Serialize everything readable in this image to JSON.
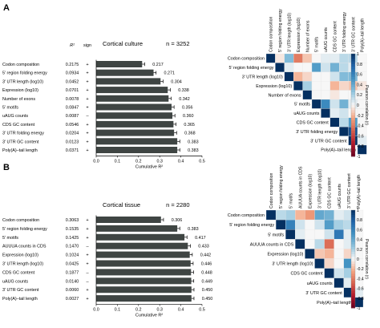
{
  "chart_data": [
    {
      "panel": "A",
      "type": "bar",
      "title": "Cortical culture",
      "n_label": "n = 3252",
      "xlabel": "Cumulative R²",
      "xlim": [
        0,
        0.5
      ],
      "xticks": [
        "0.0",
        "0.1",
        "0.2",
        "0.3",
        "0.4",
        "0.5"
      ],
      "col_headers": [
        "R²",
        "sign"
      ],
      "categories": [
        "Codon composition",
        "5' region folding energy",
        "3' UTR length (log10)",
        "Expression (log10)",
        "Number of exons",
        "5' motifs",
        "uAUG counts",
        "CDS GC content",
        "3' UTR folding energy",
        "3' UTR GC content",
        "Poly(A)–tail length"
      ],
      "r2_labels": [
        "0.2175",
        "0.0934",
        "0.0452",
        "0.0701",
        "0.0078",
        "0.0847",
        "0.0087",
        "0.0546",
        "0.0204",
        "0.0123",
        "0.0371"
      ],
      "signs": [
        "+",
        "+",
        "+",
        "+",
        "+",
        "+",
        "–",
        "+",
        "+",
        "+",
        "+"
      ],
      "values": [
        0.217,
        0.271,
        0.304,
        0.338,
        0.342,
        0.356,
        0.36,
        0.365,
        0.368,
        0.383,
        0.383
      ],
      "value_labels": [
        "0.217",
        "0.271",
        "0.304",
        "0.338",
        "0.342",
        "0.356",
        "0.360",
        "0.365",
        "0.368",
        "0.383",
        "0.383"
      ]
    },
    {
      "panel": "B",
      "type": "bar",
      "title": "Cortical tissue",
      "n_label": "n = 2280",
      "xlabel": "Cumulative R²",
      "xlim": [
        0,
        0.5
      ],
      "xticks": [
        "0.0",
        "0.1",
        "0.2",
        "0.3",
        "0.4",
        "0.5"
      ],
      "col_headers": [],
      "categories": [
        "Codon composition",
        "5' region folding energy",
        "5' motifs",
        "AUUUA counts in CDS",
        "Expression (log10)",
        "3' UTR length (log10)",
        "CDS GC content",
        "uAUG counts",
        "3' UTR GC content",
        "Poly(A)–tail length"
      ],
      "r2_labels": [
        "0.3063",
        "0.1535",
        "0.1425",
        "0.1470",
        "0.1024",
        "0.0425",
        "0.1877",
        "0.0140",
        "0.0060",
        "0.0027"
      ],
      "signs": [
        "+",
        "+",
        "+",
        "–",
        "+",
        "+",
        "–",
        "–",
        "+",
        "+"
      ],
      "values": [
        0.306,
        0.383,
        0.417,
        0.433,
        0.442,
        0.446,
        0.448,
        0.449,
        0.45,
        0.45
      ],
      "value_labels": [
        "0.306",
        "0.383",
        "0.417",
        "0.433",
        "0.442",
        "0.446",
        "0.448",
        "0.449",
        "0.450",
        "0.450"
      ]
    },
    {
      "panel": "A",
      "type": "heatmap",
      "row_labels": [
        "Codon composition",
        "5' region folding energy",
        "3' UTR length (log10)",
        "Expression (log10)",
        "Number of exons",
        "5' motifs",
        "uAUG counts",
        "CDS GC content",
        "3' UTR folding energy",
        "3' UTR GC content",
        "Poly(A)–tail length"
      ],
      "column_labels": [
        "Codon composition",
        "5' region folding energy",
        "3' UTR length (log10)",
        "Expression (log10)",
        "Number of exons",
        "5' motifs",
        "uAUG counts",
        "CDS GC content",
        "3' UTR folding energy",
        "3' UTR GC content",
        "Poly(A)–tail length"
      ],
      "colorbar_label": "Pearson correlation (r)",
      "colorbar_ticks": [
        "1",
        "0.8",
        "0.6",
        "0.4",
        "0.2",
        "0",
        "-0.2",
        "-0.4",
        "-0.6",
        "-0.8",
        "-1"
      ],
      "matrix": [
        [
          1,
          -0.05,
          0.3,
          -0.4,
          -0.15,
          0,
          0.05,
          0.05,
          0.15,
          0.15,
          0
        ],
        [
          null,
          1,
          0.05,
          0,
          0,
          0.45,
          0.1,
          0.35,
          0.15,
          0.05,
          0
        ],
        [
          null,
          null,
          1,
          -0.2,
          -0.1,
          0,
          0,
          0.1,
          0.3,
          0.3,
          0
        ],
        [
          null,
          null,
          null,
          1,
          0.2,
          0,
          0,
          -0.2,
          -0.1,
          -0.15,
          -0.05
        ],
        [
          null,
          null,
          null,
          null,
          1,
          0,
          0,
          -0.05,
          0,
          0,
          0
        ],
        [
          null,
          null,
          null,
          null,
          null,
          1,
          0.55,
          0.1,
          0.35,
          0.05,
          0
        ],
        [
          null,
          null,
          null,
          null,
          null,
          null,
          1,
          0.05,
          0.1,
          0,
          0
        ],
        [
          null,
          null,
          null,
          null,
          null,
          null,
          null,
          1,
          0.15,
          0.45,
          0
        ],
        [
          null,
          null,
          null,
          null,
          null,
          null,
          null,
          null,
          1,
          0.85,
          0
        ],
        [
          null,
          null,
          null,
          null,
          null,
          null,
          null,
          null,
          null,
          1,
          0.05
        ],
        [
          null,
          null,
          null,
          null,
          null,
          null,
          null,
          null,
          null,
          null,
          1
        ]
      ]
    },
    {
      "panel": "B",
      "type": "heatmap",
      "row_labels": [
        "Codon composition",
        "5' region folding energy",
        "5' motifs",
        "AUUUA counts in CDS",
        "Expression (log10)",
        "3' UTR length (log10)",
        "CDS GC content",
        "uAUG counts",
        "3' UTR GC content",
        "Poly(A)–tail length"
      ],
      "column_labels": [
        "Codon composition",
        "5' region folding energy",
        "5' motifs",
        "AUUUA counts in CDS",
        "Expression (log10)",
        "3' UTR length (log10)",
        "CDS GC content",
        "uAUG counts",
        "3' UTR GC content",
        "Poly(A)–tail length"
      ],
      "colorbar_label": "Pearson correlation (r)",
      "colorbar_ticks": [
        "1",
        "0.8",
        "0.6",
        "0.4",
        "0.2",
        "0",
        "-0.2",
        "-0.4",
        "-0.6",
        "-0.8",
        "-1"
      ],
      "matrix": [
        [
          1,
          0.15,
          0.2,
          -0.2,
          -0.3,
          0.4,
          0.35,
          0.05,
          0.1,
          0
        ],
        [
          null,
          1,
          0.6,
          0.1,
          0,
          0.1,
          0.45,
          0.2,
          0.15,
          0
        ],
        [
          null,
          null,
          1,
          0.05,
          0,
          0,
          0.1,
          0.65,
          0.05,
          0
        ],
        [
          null,
          null,
          null,
          1,
          0,
          0.15,
          -0.45,
          0,
          0.05,
          0
        ],
        [
          null,
          null,
          null,
          null,
          1,
          -0.15,
          -0.2,
          0,
          -0.1,
          0
        ],
        [
          null,
          null,
          null,
          null,
          null,
          1,
          -0.1,
          0,
          0.5,
          0
        ],
        [
          null,
          null,
          null,
          null,
          null,
          null,
          1,
          0.1,
          0.2,
          0
        ],
        [
          null,
          null,
          null,
          null,
          null,
          null,
          null,
          1,
          0.05,
          0
        ],
        [
          null,
          null,
          null,
          null,
          null,
          null,
          null,
          null,
          1,
          0.05
        ],
        [
          null,
          null,
          null,
          null,
          null,
          null,
          null,
          null,
          null,
          1
        ]
      ]
    }
  ],
  "panel_letters": [
    "A",
    "B"
  ],
  "colors": {
    "bar": "#3f4543",
    "error": "#000000",
    "positive": "#2166ac",
    "negative": "#b2182b",
    "diagonal": "#053061",
    "grid_line": "#e6e6e6"
  }
}
